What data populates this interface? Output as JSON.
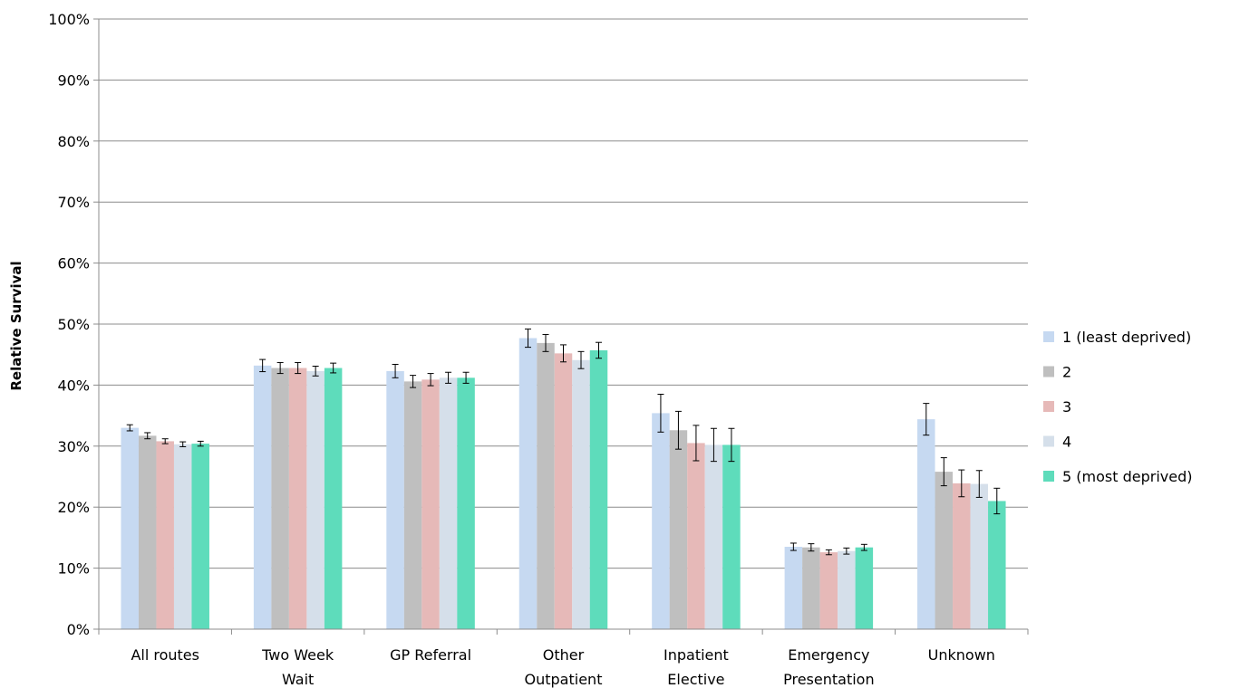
{
  "chart_data": {
    "type": "bar",
    "title": "",
    "xlabel": "",
    "ylabel": "Relative Survival",
    "ylim": [
      0,
      100
    ],
    "yticks": [
      "0%",
      "10%",
      "20%",
      "30%",
      "40%",
      "50%",
      "60%",
      "70%",
      "80%",
      "90%",
      "100%"
    ],
    "grid": true,
    "legend_position": "right",
    "categories": [
      [
        "All routes"
      ],
      [
        "Two Week",
        "Wait"
      ],
      [
        "GP Referral"
      ],
      [
        "Other",
        "Outpatient"
      ],
      [
        "Inpatient",
        "Elective"
      ],
      [
        "Emergency",
        "Presentation"
      ],
      [
        "Unknown"
      ]
    ],
    "series": [
      {
        "name": "1 (least deprived)",
        "color": "#c6d9f1",
        "values": [
          33.0,
          43.2,
          42.3,
          47.7,
          35.4,
          13.5,
          34.4
        ],
        "lower": [
          32.5,
          42.2,
          41.2,
          46.2,
          32.3,
          12.9,
          31.8
        ],
        "upper": [
          33.5,
          44.2,
          43.4,
          49.2,
          38.5,
          14.1,
          37.0
        ]
      },
      {
        "name": "2",
        "color": "#bfbfbf",
        "values": [
          31.7,
          42.8,
          40.6,
          46.9,
          32.6,
          13.4,
          25.8
        ],
        "lower": [
          31.2,
          41.9,
          39.6,
          45.5,
          29.5,
          12.8,
          23.5
        ],
        "upper": [
          32.2,
          43.7,
          41.6,
          48.3,
          35.7,
          14.0,
          28.1
        ]
      },
      {
        "name": "3",
        "color": "#e6b9b8",
        "values": [
          30.8,
          42.8,
          40.9,
          45.2,
          30.5,
          12.6,
          23.9
        ],
        "lower": [
          30.4,
          41.9,
          39.9,
          43.8,
          27.6,
          12.2,
          21.7
        ],
        "upper": [
          31.2,
          43.7,
          41.9,
          46.6,
          33.4,
          13.0,
          26.1
        ]
      },
      {
        "name": "4",
        "color": "#d5dfea",
        "values": [
          30.3,
          42.3,
          41.2,
          44.1,
          30.2,
          12.8,
          23.8
        ],
        "lower": [
          29.9,
          41.5,
          40.3,
          42.7,
          27.5,
          12.3,
          21.6
        ],
        "upper": [
          30.7,
          43.1,
          42.1,
          45.5,
          32.9,
          13.3,
          26.0
        ]
      },
      {
        "name": "5 (most deprived)",
        "color": "#5edcbb",
        "values": [
          30.4,
          42.8,
          41.2,
          45.7,
          30.2,
          13.4,
          21.0
        ],
        "lower": [
          30.0,
          42.0,
          40.3,
          44.4,
          27.5,
          12.9,
          18.9
        ],
        "upper": [
          30.8,
          43.6,
          42.1,
          47.0,
          32.9,
          13.9,
          23.1
        ]
      }
    ]
  }
}
